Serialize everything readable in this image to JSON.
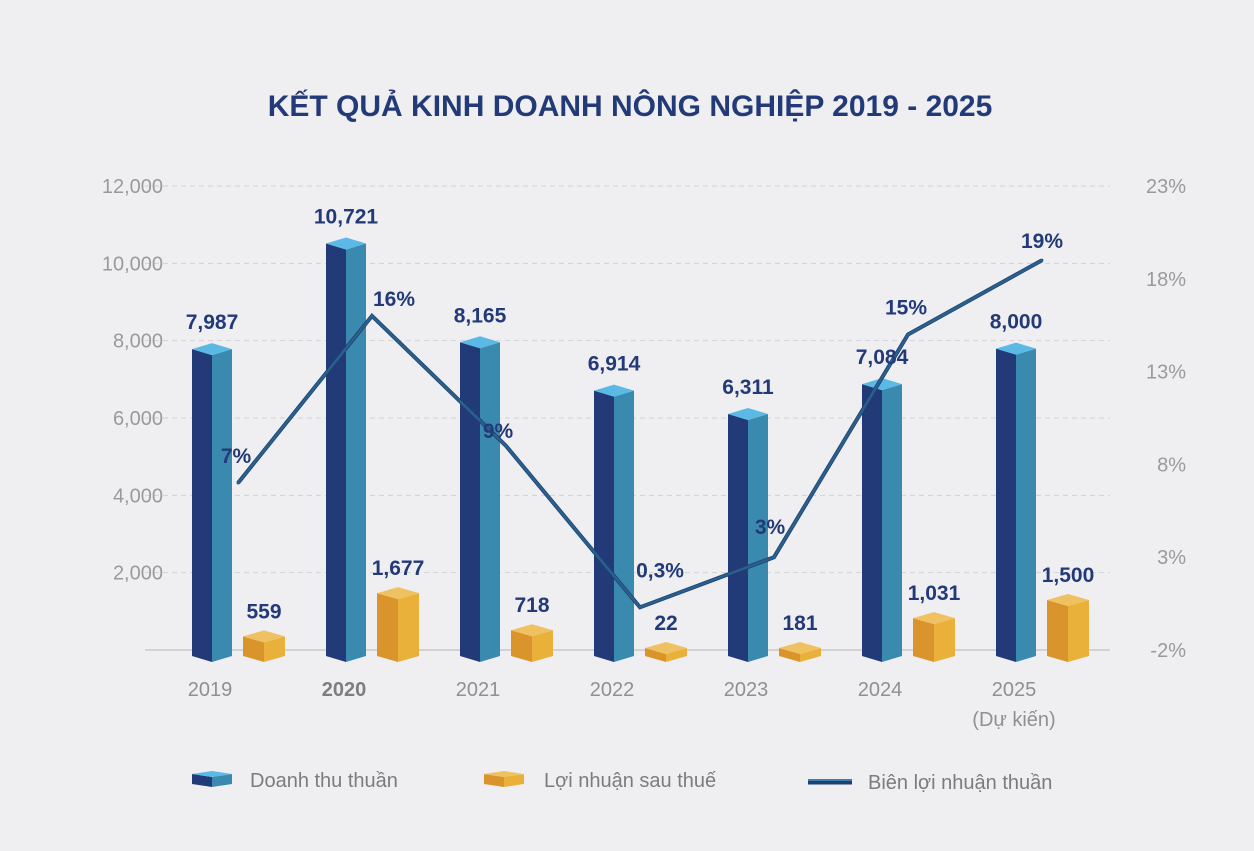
{
  "chart_data": {
    "type": "bar+line",
    "title": "KẾT QUẢ KINH DOANH NÔNG NGHIỆP 2019 - 2025",
    "categories": [
      "2019",
      "2020",
      "2021",
      "2022",
      "2023",
      "2024",
      "2025"
    ],
    "category_sublabels": [
      "",
      "",
      "",
      "",
      "",
      "",
      "(Dự kiến)"
    ],
    "highlighted_category": "2020",
    "y_left": {
      "ylim": [
        0,
        12000
      ],
      "ticks": [
        "2,000",
        "4,000",
        "6,000",
        "8,000",
        "10,000",
        "12,000"
      ]
    },
    "y_right": {
      "ylim": [
        -2,
        23
      ],
      "ticks": [
        "-2%",
        "3%",
        "8%",
        "13%",
        "18%",
        "23%"
      ]
    },
    "grid": true,
    "legend_position": "bottom",
    "series": [
      {
        "name": "Doanh thu thuần",
        "type": "bar",
        "axis": "left",
        "values": [
          7987,
          10721,
          8165,
          6914,
          6311,
          7084,
          8000
        ],
        "labels": [
          "7,987",
          "10,721",
          "8,165",
          "6,914",
          "6,311",
          "7,084",
          "8,000"
        ],
        "colors": {
          "front": "#233a78",
          "side": "#3a8ab0",
          "top": "#5bb9e6"
        }
      },
      {
        "name": "Lợi nhuận sau thuế",
        "type": "bar",
        "axis": "left",
        "values": [
          559,
          1677,
          718,
          22,
          181,
          1031,
          1500
        ],
        "labels": [
          "559",
          "1,677",
          "718",
          "22",
          "181",
          "1,031",
          "1,500"
        ],
        "colors": {
          "front": "#d9952c",
          "side": "#e9b13a",
          "top": "#f0c160"
        }
      },
      {
        "name": "Biên lợi nhuận thuần",
        "type": "line",
        "axis": "right",
        "values": [
          7,
          16,
          9,
          0.3,
          3,
          15,
          19
        ],
        "labels": [
          "7%",
          "16%",
          "9%",
          "0,3%",
          "3%",
          "15%",
          "19%"
        ],
        "colors": {
          "line": "#2a5f8e"
        }
      }
    ]
  }
}
